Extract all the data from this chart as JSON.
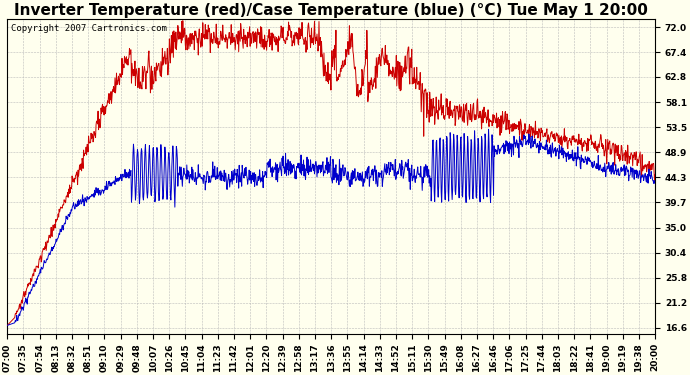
{
  "title": "Inverter Temperature (red)/Case Temperature (blue) (°C) Tue May 1 20:00",
  "copyright": "Copyright 2007 Cartronics.com",
  "yticks": [
    16.6,
    21.2,
    25.8,
    30.4,
    35.0,
    39.7,
    44.3,
    48.9,
    53.5,
    58.1,
    62.8,
    67.4,
    72.0
  ],
  "ylim": [
    15.5,
    73.5
  ],
  "xtick_labels": [
    "07:00",
    "07:35",
    "07:54",
    "08:13",
    "08:32",
    "08:51",
    "09:10",
    "09:29",
    "09:48",
    "10:07",
    "10:26",
    "10:45",
    "11:04",
    "11:23",
    "11:42",
    "12:01",
    "12:20",
    "12:39",
    "12:58",
    "13:17",
    "13:36",
    "13:55",
    "14:14",
    "14:33",
    "14:52",
    "15:11",
    "15:30",
    "15:49",
    "16:08",
    "16:27",
    "16:46",
    "17:06",
    "17:25",
    "17:44",
    "18:03",
    "18:22",
    "18:41",
    "19:00",
    "19:19",
    "19:38",
    "20:00"
  ],
  "bg_color": "#FFFFEE",
  "grid_color": "#BBBBBB",
  "red_color": "#CC0000",
  "blue_color": "#0000CC",
  "title_fontsize": 11,
  "copyright_fontsize": 6.5,
  "tick_fontsize": 6.5
}
